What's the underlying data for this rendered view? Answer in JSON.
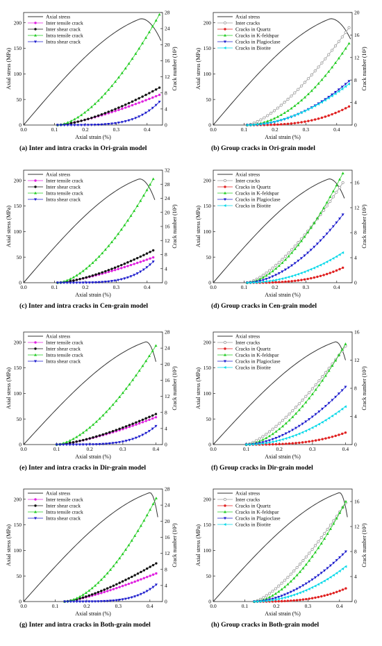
{
  "colors": {
    "stress": "#333333",
    "inter_crack": "#9a9a9a",
    "inter_tensile": "#e020e0",
    "inter_shear": "#111111",
    "intra_tensile": "#22cc22",
    "intra_shear": "#1a1acc",
    "quartz": "#e02020",
    "kfeldspar": "#22cc22",
    "plagioclase": "#1a1acc",
    "biotite": "#00d8e8"
  },
  "chart_data": [
    {
      "id": "a",
      "type": "line",
      "caption": "(a) Inter and intra cracks in Ori-grain model",
      "xlabel": "Axial strain (%)",
      "ylabel": "Axial stress (MPa)",
      "y2label": "Crack number (10²)",
      "xlim": [
        0,
        0.45
      ],
      "xticks": [
        "0.0",
        "0.1",
        "0.2",
        "0.3",
        "0.4"
      ],
      "ylim": [
        0,
        220
      ],
      "yticks": [
        0,
        50,
        100,
        150,
        200
      ],
      "y2lim": [
        0,
        28
      ],
      "y2ticks": [
        0,
        4,
        8,
        12,
        16,
        20,
        24,
        28
      ],
      "stress": {
        "name": "Axial stress",
        "peak_x": 0.38,
        "peak_y": 208,
        "end_x": 0.445,
        "end_y": 165
      },
      "series": [
        {
          "name": "Inter tensile crack",
          "color_key": "inter_tensile",
          "marker": "circle",
          "start": 0.11,
          "end": 0.44,
          "end_value": 7.5,
          "curv": 1.35
        },
        {
          "name": "Inter shear crack",
          "color_key": "inter_shear",
          "marker": "circle",
          "start": 0.11,
          "end": 0.44,
          "end_value": 9.3,
          "curv": 1.5
        },
        {
          "name": "Intra tensile crack",
          "color_key": "intra_tensile",
          "marker": "triangle",
          "start": 0.11,
          "end": 0.44,
          "end_value": 27.5,
          "curv": 1.65
        },
        {
          "name": "Intra shear crack",
          "color_key": "intra_shear",
          "marker": "tri-down",
          "start": 0.11,
          "end": 0.44,
          "end_value": 5.8,
          "curv": 4.5
        }
      ]
    },
    {
      "id": "b",
      "type": "line",
      "caption": "(b) Group cracks in Ori-grain model",
      "xlabel": "Axial strain (%)",
      "ylabel": "Axial stress (MPa)",
      "y2label": "Crack number (10²)",
      "xlim": [
        0,
        0.45
      ],
      "xticks": [
        "0.0",
        "0.1",
        "0.2",
        "0.3",
        "0.4"
      ],
      "ylim": [
        0,
        220
      ],
      "yticks": [
        0,
        50,
        100,
        150,
        200
      ],
      "y2lim": [
        0,
        20
      ],
      "y2ticks": [
        0,
        4,
        8,
        12,
        16,
        20
      ],
      "stress": {
        "name": "Axial stress",
        "peak_x": 0.38,
        "peak_y": 208,
        "end_x": 0.445,
        "end_y": 168
      },
      "series": [
        {
          "name": "Inter cracks",
          "color_key": "inter_crack",
          "marker": "open-circle",
          "start": 0.11,
          "end": 0.44,
          "end_value": 17.3,
          "curv": 1.45
        },
        {
          "name": "Cracks in Quartz",
          "color_key": "quartz",
          "marker": "circle",
          "start": 0.11,
          "end": 0.44,
          "end_value": 3.3,
          "curv": 3.0
        },
        {
          "name": "Cracks in K-feldspar",
          "color_key": "kfeldspar",
          "marker": "triangle",
          "start": 0.11,
          "end": 0.44,
          "end_value": 14.5,
          "curv": 1.9
        },
        {
          "name": "Cracks in Plagioclase",
          "color_key": "plagioclase",
          "marker": "tri-down",
          "start": 0.11,
          "end": 0.44,
          "end_value": 7.8,
          "curv": 2.0
        },
        {
          "name": "Cracks in Biotite",
          "color_key": "biotite",
          "marker": "tri-left",
          "start": 0.11,
          "end": 0.44,
          "end_value": 7.3,
          "curv": 1.9
        }
      ]
    },
    {
      "id": "c",
      "type": "line",
      "caption": "(c) Inter and intra cracks in Cen-grain model",
      "xlabel": "Axial strain (%)",
      "ylabel": "Axial stress (MPa)",
      "y2label": "Crack number (10²)",
      "xlim": [
        0,
        0.45
      ],
      "xticks": [
        "0.0",
        "0.1",
        "0.2",
        "0.3",
        "0.4"
      ],
      "ylim": [
        0,
        220
      ],
      "yticks": [
        0,
        50,
        100,
        150,
        200
      ],
      "y2lim": [
        0,
        32
      ],
      "y2ticks": [
        0,
        4,
        8,
        12,
        16,
        20,
        24,
        28,
        32
      ],
      "stress": {
        "name": "Axial stress",
        "peak_x": 0.375,
        "peak_y": 203,
        "end_x": 0.425,
        "end_y": 162
      },
      "series": [
        {
          "name": "Inter tensile crack",
          "color_key": "inter_tensile",
          "marker": "circle",
          "start": 0.11,
          "end": 0.42,
          "end_value": 7.2,
          "curv": 1.35
        },
        {
          "name": "Inter shear crack",
          "color_key": "inter_shear",
          "marker": "circle",
          "start": 0.11,
          "end": 0.42,
          "end_value": 9.2,
          "curv": 1.5
        },
        {
          "name": "Intra tensile crack",
          "color_key": "intra_tensile",
          "marker": "triangle",
          "start": 0.11,
          "end": 0.42,
          "end_value": 29.5,
          "curv": 1.65
        },
        {
          "name": "Intra shear crack",
          "color_key": "intra_shear",
          "marker": "tri-down",
          "start": 0.11,
          "end": 0.42,
          "end_value": 6.0,
          "curv": 4.5
        }
      ]
    },
    {
      "id": "d",
      "type": "line",
      "caption": "(d) Group cracks in Cen-grain model",
      "xlabel": "Axial strain (%)",
      "ylabel": "Axial stress (MPa)",
      "y2label": "Crack number (10²)",
      "xlim": [
        0,
        0.45
      ],
      "xticks": [
        "0.0",
        "0.1",
        "0.2",
        "0.3",
        "0.4"
      ],
      "ylim": [
        0,
        220
      ],
      "yticks": [
        0,
        50,
        100,
        150,
        200
      ],
      "y2lim": [
        0,
        18
      ],
      "y2ticks": [
        0,
        4,
        8,
        12,
        16
      ],
      "stress": {
        "name": "Axial stress",
        "peak_x": 0.375,
        "peak_y": 203,
        "end_x": 0.425,
        "end_y": 165
      },
      "series": [
        {
          "name": "Inter cracks",
          "color_key": "inter_crack",
          "marker": "open-circle",
          "start": 0.11,
          "end": 0.42,
          "end_value": 16.0,
          "curv": 1.45
        },
        {
          "name": "Cracks in Quartz",
          "color_key": "quartz",
          "marker": "circle",
          "start": 0.11,
          "end": 0.42,
          "end_value": 2.4,
          "curv": 3.0
        },
        {
          "name": "Cracks in K-feldspar",
          "color_key": "kfeldspar",
          "marker": "triangle",
          "start": 0.11,
          "end": 0.42,
          "end_value": 17.5,
          "curv": 1.7
        },
        {
          "name": "Cracks in Plagioclase",
          "color_key": "plagioclase",
          "marker": "tri-down",
          "start": 0.11,
          "end": 0.42,
          "end_value": 10.9,
          "curv": 1.8
        },
        {
          "name": "Cracks in Biotite",
          "color_key": "biotite",
          "marker": "tri-left",
          "start": 0.11,
          "end": 0.42,
          "end_value": 4.8,
          "curv": 2.0
        }
      ]
    },
    {
      "id": "e",
      "type": "line",
      "caption": "(e) Inter and intra cracks in Dir-grain model",
      "xlabel": "Axial strain (%)",
      "ylabel": "Axial stress (MPa)",
      "y2label": "Crack number (10²)",
      "xlim": [
        0,
        0.42
      ],
      "xticks": [
        "0.0",
        "0.1",
        "0.2",
        "0.3",
        "0.4"
      ],
      "ylim": [
        0,
        220
      ],
      "yticks": [
        0,
        50,
        100,
        150,
        200
      ],
      "y2lim": [
        0,
        28
      ],
      "y2ticks": [
        0,
        4,
        8,
        12,
        16,
        20,
        24,
        28
      ],
      "stress": {
        "name": "Axial stress",
        "peak_x": 0.37,
        "peak_y": 201,
        "end_x": 0.4,
        "end_y": 162
      },
      "series": [
        {
          "name": "Inter tensile crack",
          "color_key": "inter_tensile",
          "marker": "circle",
          "start": 0.1,
          "end": 0.4,
          "end_value": 6.8,
          "curv": 1.4
        },
        {
          "name": "Inter shear crack",
          "color_key": "inter_shear",
          "marker": "circle",
          "start": 0.1,
          "end": 0.4,
          "end_value": 7.6,
          "curv": 1.45
        },
        {
          "name": "Intra tensile crack",
          "color_key": "intra_tensile",
          "marker": "triangle",
          "start": 0.1,
          "end": 0.4,
          "end_value": 24.6,
          "curv": 1.6
        },
        {
          "name": "Intra shear crack",
          "color_key": "intra_shear",
          "marker": "tri-down",
          "start": 0.1,
          "end": 0.4,
          "end_value": 4.6,
          "curv": 4.5
        }
      ]
    },
    {
      "id": "f",
      "type": "line",
      "caption": "(f) Group cracks in Dir-grain model",
      "xlabel": "Axial strain (%)",
      "ylabel": "Axial stress (MPa)",
      "y2label": "Crack number (10²)",
      "xlim": [
        0,
        0.42
      ],
      "xticks": [
        "0.0",
        "0.1",
        "0.2",
        "0.3",
        "0.4"
      ],
      "ylim": [
        0,
        220
      ],
      "yticks": [
        0,
        50,
        100,
        150,
        200
      ],
      "y2lim": [
        0,
        16
      ],
      "y2ticks": [
        0,
        4,
        8,
        12,
        16
      ],
      "stress": {
        "name": "Axial stress",
        "peak_x": 0.37,
        "peak_y": 201,
        "end_x": 0.4,
        "end_y": 165
      },
      "series": [
        {
          "name": "Inter cracks",
          "color_key": "inter_crack",
          "marker": "open-circle",
          "start": 0.1,
          "end": 0.4,
          "end_value": 14.0,
          "curv": 1.4
        },
        {
          "name": "Cracks in Quartz",
          "color_key": "quartz",
          "marker": "circle",
          "start": 0.1,
          "end": 0.4,
          "end_value": 1.7,
          "curv": 3.0
        },
        {
          "name": "Cracks in K-feldspar",
          "color_key": "kfeldspar",
          "marker": "triangle",
          "start": 0.1,
          "end": 0.4,
          "end_value": 14.3,
          "curv": 1.7
        },
        {
          "name": "Cracks in Plagioclase",
          "color_key": "plagioclase",
          "marker": "tri-down",
          "start": 0.1,
          "end": 0.4,
          "end_value": 8.2,
          "curv": 1.8
        },
        {
          "name": "Cracks in Biotite",
          "color_key": "biotite",
          "marker": "tri-left",
          "start": 0.1,
          "end": 0.4,
          "end_value": 5.4,
          "curv": 2.0
        }
      ]
    },
    {
      "id": "g",
      "type": "line",
      "caption": "(g) Inter and intra cracks in Both-grain model",
      "xlabel": "Axial strain (%)",
      "ylabel": "Axial stress (MPa)",
      "y2label": "Crack number (10²)",
      "xlim": [
        0,
        0.44
      ],
      "xticks": [
        "0.0",
        "0.1",
        "0.2",
        "0.3",
        "0.4"
      ],
      "ylim": [
        0,
        220
      ],
      "yticks": [
        0,
        50,
        100,
        150,
        200
      ],
      "y2lim": [
        0,
        28
      ],
      "y2ticks": [
        0,
        4,
        8,
        12,
        16,
        20,
        24,
        28
      ],
      "stress": {
        "name": "Axial stress",
        "peak_x": 0.4,
        "peak_y": 213,
        "end_x": 0.425,
        "end_y": 165
      },
      "series": [
        {
          "name": "Inter tensile crack",
          "color_key": "inter_tensile",
          "marker": "circle",
          "start": 0.13,
          "end": 0.42,
          "end_value": 7.0,
          "curv": 1.3
        },
        {
          "name": "Inter shear crack",
          "color_key": "inter_shear",
          "marker": "circle",
          "start": 0.13,
          "end": 0.42,
          "end_value": 9.5,
          "curv": 1.4
        },
        {
          "name": "Intra tensile crack",
          "color_key": "intra_tensile",
          "marker": "triangle",
          "start": 0.13,
          "end": 0.42,
          "end_value": 25.7,
          "curv": 1.7
        },
        {
          "name": "Intra shear crack",
          "color_key": "intra_shear",
          "marker": "tri-down",
          "start": 0.13,
          "end": 0.42,
          "end_value": 4.2,
          "curv": 4.5
        }
      ]
    },
    {
      "id": "h",
      "type": "line",
      "caption": "(h) Group cracks in Both-grain model",
      "xlabel": "Axial strain (%)",
      "ylabel": "Axial stress (MPa)",
      "y2label": "Crack number (10²)",
      "xlim": [
        0,
        0.44
      ],
      "xticks": [
        "0.0",
        "0.1",
        "0.2",
        "0.3",
        "0.4"
      ],
      "ylim": [
        0,
        220
      ],
      "yticks": [
        0,
        50,
        100,
        150,
        200
      ],
      "y2lim": [
        0,
        18
      ],
      "y2ticks": [
        0,
        4,
        8,
        12,
        16
      ],
      "stress": {
        "name": "Axial stress",
        "peak_x": 0.4,
        "peak_y": 213,
        "end_x": 0.425,
        "end_y": 165
      },
      "series": [
        {
          "name": "Inter cracks",
          "color_key": "inter_crack",
          "marker": "open-circle",
          "start": 0.13,
          "end": 0.42,
          "end_value": 15.8,
          "curv": 1.4
        },
        {
          "name": "Cracks in Quartz",
          "color_key": "quartz",
          "marker": "circle",
          "start": 0.13,
          "end": 0.42,
          "end_value": 2.1,
          "curv": 3.0
        },
        {
          "name": "Cracks in K-feldspar",
          "color_key": "kfeldspar",
          "marker": "triangle",
          "start": 0.13,
          "end": 0.42,
          "end_value": 16.0,
          "curv": 1.75
        },
        {
          "name": "Cracks in Plagioclase",
          "color_key": "plagioclase",
          "marker": "tri-down",
          "start": 0.13,
          "end": 0.42,
          "end_value": 8.0,
          "curv": 1.8
        },
        {
          "name": "Cracks in Biotite",
          "color_key": "biotite",
          "marker": "tri-left",
          "start": 0.13,
          "end": 0.42,
          "end_value": 5.6,
          "curv": 2.0
        }
      ]
    }
  ]
}
